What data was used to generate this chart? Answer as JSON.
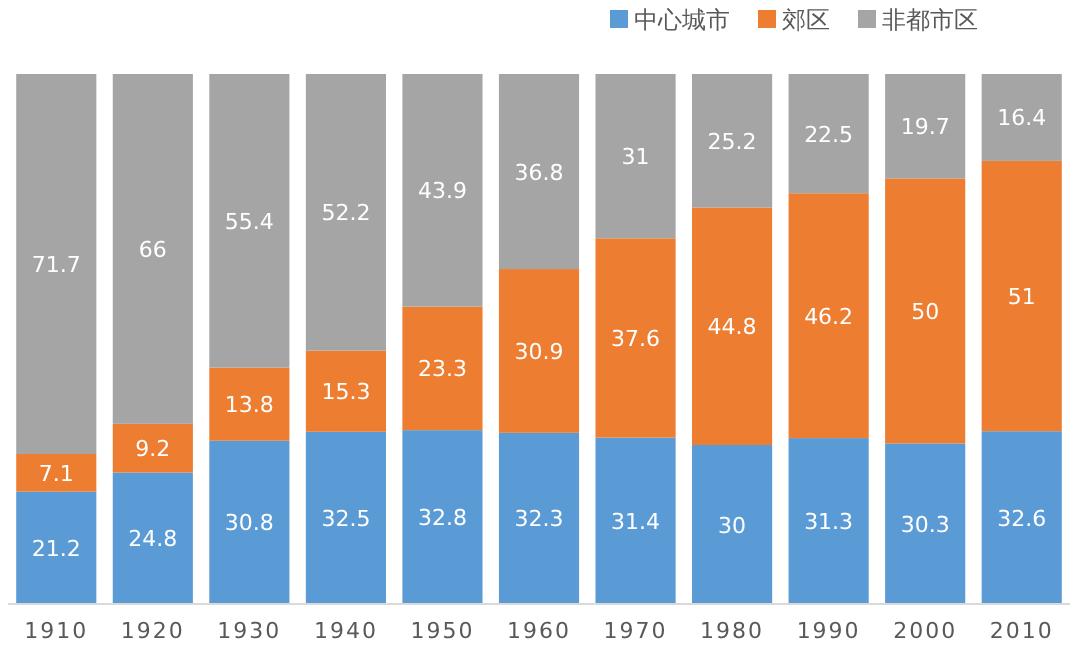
{
  "chart_data": {
    "type": "bar",
    "stacked": true,
    "data_labels": true,
    "legend": "top",
    "grid": false,
    "categories": [
      "1910",
      "1920",
      "1930",
      "1940",
      "1950",
      "1960",
      "1970",
      "1980",
      "1990",
      "2000",
      "2010"
    ],
    "ylim": [
      0,
      100
    ],
    "series": [
      {
        "name": "中心城市",
        "color": "#5b9bd5",
        "values": [
          21.2,
          24.8,
          30.8,
          32.5,
          32.8,
          32.3,
          31.4,
          30,
          31.3,
          30.3,
          32.6
        ]
      },
      {
        "name": "郊区",
        "color": "#ed7d31",
        "values": [
          7.1,
          9.2,
          13.8,
          15.3,
          23.3,
          30.9,
          37.6,
          44.8,
          46.2,
          50,
          51
        ]
      },
      {
        "name": "非都市区",
        "color": "#a5a5a5",
        "values": [
          71.7,
          66,
          55.4,
          52.2,
          43.9,
          36.8,
          31,
          25.2,
          22.5,
          19.7,
          16.4
        ]
      }
    ]
  }
}
